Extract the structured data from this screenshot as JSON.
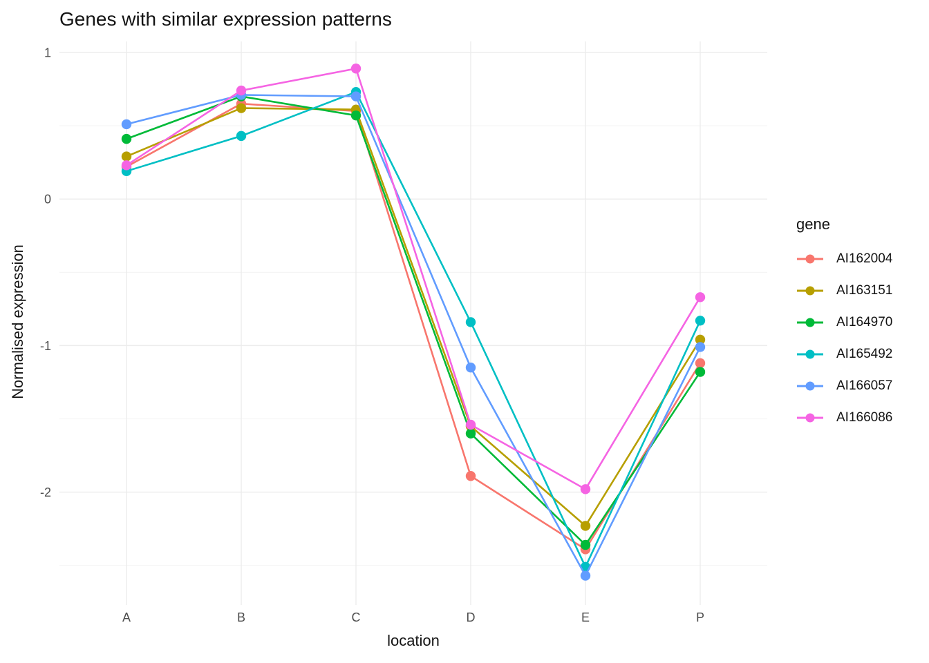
{
  "title": "Genes with similar expression patterns",
  "axes": {
    "x_label": "location",
    "y_label": "Normalised expression",
    "x_tick_labels": [
      "A",
      "B",
      "C",
      "D",
      "E",
      "P"
    ],
    "y_tick_labels": [
      "1",
      "0",
      "-1",
      "-2"
    ]
  },
  "legend": {
    "title": "gene",
    "entries": [
      "AI162004",
      "AI163151",
      "AI164970",
      "AI165492",
      "AI166057",
      "AI166086"
    ]
  },
  "colors": {
    "background": "#FFFFFF",
    "grid_major": "#ECECEC",
    "grid_minor": "#F2F2F2",
    "tick_text": "#4D4D4D",
    "text": "#141414"
  },
  "chart_data": {
    "type": "line",
    "title": "Genes with similar expression patterns",
    "xlabel": "location",
    "ylabel": "Normalised expression",
    "categories": [
      "A",
      "B",
      "C",
      "D",
      "E",
      "P"
    ],
    "series": [
      {
        "name": "AI162004",
        "color": "#F8766D",
        "values": [
          0.22,
          0.65,
          0.6,
          -1.89,
          -2.39,
          -1.12
        ]
      },
      {
        "name": "AI163151",
        "color": "#B79F00",
        "values": [
          0.29,
          0.62,
          0.61,
          -1.55,
          -2.23,
          -0.96
        ]
      },
      {
        "name": "AI164970",
        "color": "#00BA38",
        "values": [
          0.41,
          0.7,
          0.57,
          -1.6,
          -2.36,
          -1.18
        ]
      },
      {
        "name": "AI165492",
        "color": "#00BFC4",
        "values": [
          0.19,
          0.43,
          0.73,
          -0.84,
          -2.51,
          -0.83
        ]
      },
      {
        "name": "AI166057",
        "color": "#619CFF",
        "values": [
          0.51,
          0.71,
          0.7,
          -1.15,
          -2.57,
          -1.01
        ]
      },
      {
        "name": "AI166086",
        "color": "#F564E3",
        "values": [
          0.23,
          0.74,
          0.89,
          -1.54,
          -1.98,
          -0.67
        ]
      }
    ],
    "ylim": [
      -2.77,
      1.075
    ],
    "yticks_major": [
      1,
      0,
      -1,
      -2
    ],
    "yticks_minor": [
      0.5,
      -0.5,
      -1.5,
      -2.5
    ],
    "grid": true,
    "legend_position": "right",
    "legend_title": "gene"
  }
}
